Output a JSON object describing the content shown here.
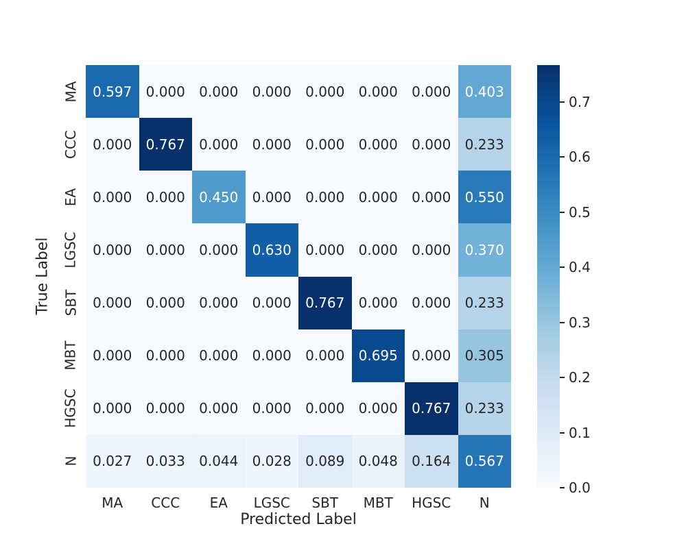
{
  "chart_data": {
    "type": "heatmap",
    "title": "",
    "xlabel": "Predicted Label",
    "ylabel": "True Label",
    "categories": [
      "MA",
      "CCC",
      "EA",
      "LGSC",
      "SBT",
      "MBT",
      "HGSC",
      "N"
    ],
    "rows": [
      "MA",
      "CCC",
      "EA",
      "LGSC",
      "SBT",
      "MBT",
      "HGSC",
      "N"
    ],
    "matrix": [
      [
        0.597,
        0.0,
        0.0,
        0.0,
        0.0,
        0.0,
        0.0,
        0.403
      ],
      [
        0.0,
        0.767,
        0.0,
        0.0,
        0.0,
        0.0,
        0.0,
        0.233
      ],
      [
        0.0,
        0.0,
        0.45,
        0.0,
        0.0,
        0.0,
        0.0,
        0.55
      ],
      [
        0.0,
        0.0,
        0.0,
        0.63,
        0.0,
        0.0,
        0.0,
        0.37
      ],
      [
        0.0,
        0.0,
        0.0,
        0.0,
        0.767,
        0.0,
        0.0,
        0.233
      ],
      [
        0.0,
        0.0,
        0.0,
        0.0,
        0.0,
        0.695,
        0.0,
        0.305
      ],
      [
        0.0,
        0.0,
        0.0,
        0.0,
        0.0,
        0.0,
        0.767,
        0.233
      ],
      [
        0.027,
        0.033,
        0.044,
        0.028,
        0.089,
        0.048,
        0.164,
        0.567
      ]
    ],
    "decimals": 3,
    "colormap": "Blues",
    "vmin": 0.0,
    "vmax": 0.767,
    "colorbar_ticks": [
      0.0,
      0.1,
      0.2,
      0.3,
      0.4,
      0.5,
      0.6,
      0.7
    ],
    "colorbar_tick_decimals": 1,
    "legend_position": "right colorbar",
    "grid": false
  },
  "colors": {
    "background": "#ffffff",
    "annotation_dark": "#262626",
    "annotation_light": "#ffffff",
    "axis_text": "#262626",
    "colormap_min": "#f7fbff",
    "colormap_max": "#08306b"
  }
}
